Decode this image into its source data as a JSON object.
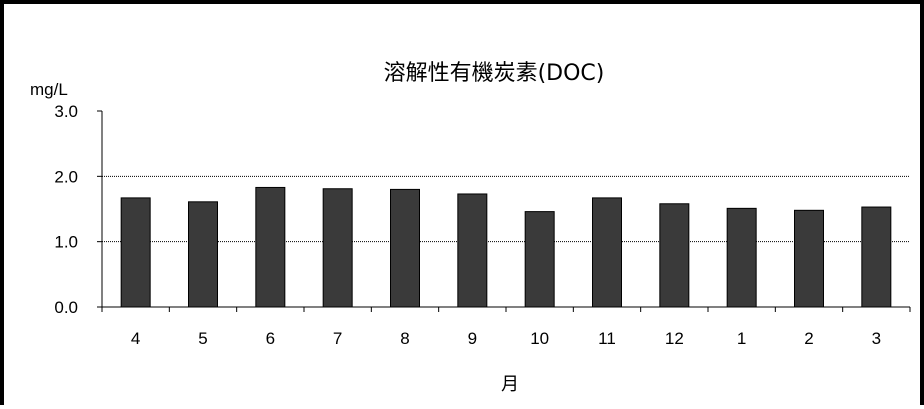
{
  "chart_data": {
    "type": "bar",
    "title": "溶解性有機炭素(DOC)",
    "ylabel": "mg/L",
    "xlabel": "月",
    "categories": [
      "4",
      "5",
      "6",
      "7",
      "8",
      "9",
      "10",
      "11",
      "12",
      "1",
      "2",
      "3"
    ],
    "values": [
      1.67,
      1.61,
      1.83,
      1.81,
      1.8,
      1.73,
      1.46,
      1.67,
      1.58,
      1.51,
      1.48,
      1.53
    ],
    "ylim": [
      0,
      3.0
    ],
    "yticks": [
      "0.0",
      "1.0",
      "2.0",
      "3.0"
    ],
    "grid": true,
    "legend": "none",
    "colors": {
      "bar": "#3a3a3a",
      "bar_edge": "#000000",
      "grid": "#000000"
    }
  }
}
